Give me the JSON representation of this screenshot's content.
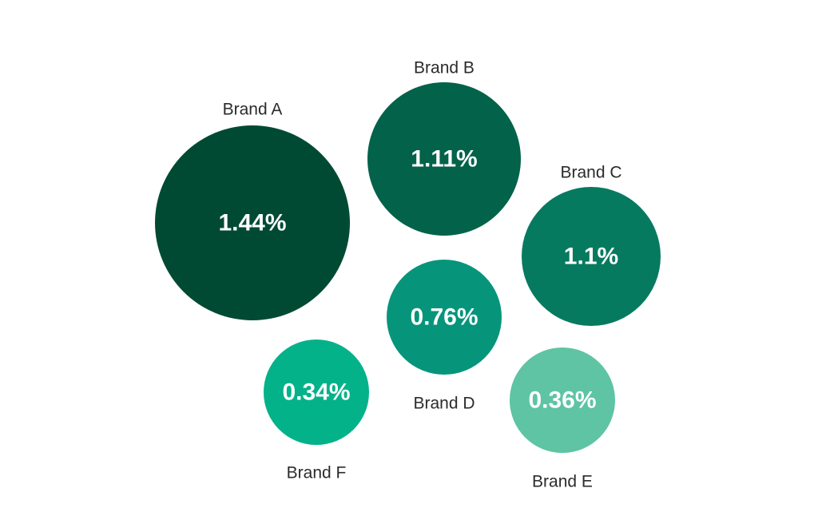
{
  "chart_data": {
    "type": "bubble",
    "series": [
      {
        "name": "Brand A",
        "value": 1.44,
        "value_label": "1.44%",
        "color": "#004a33"
      },
      {
        "name": "Brand B",
        "value": 1.11,
        "value_label": "1.11%",
        "color": "#03624a"
      },
      {
        "name": "Brand C",
        "value": 1.1,
        "value_label": "1.1%",
        "color": "#067a5f"
      },
      {
        "name": "Brand D",
        "value": 0.76,
        "value_label": "0.76%",
        "color": "#06957a"
      },
      {
        "name": "Brand E",
        "value": 0.36,
        "value_label": "0.36%",
        "color": "#5ec4a4"
      },
      {
        "name": "Brand F",
        "value": 0.34,
        "value_label": "0.34%",
        "color": "#04b28a"
      }
    ]
  }
}
